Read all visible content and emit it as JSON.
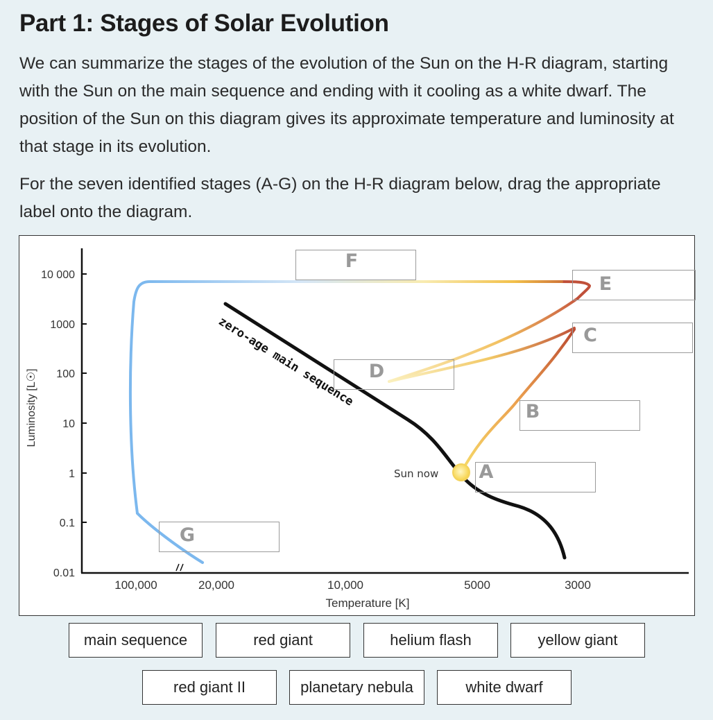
{
  "title": "Part 1: Stages of Solar Evolution",
  "paragraphs": {
    "intro": "We can summarize the stages of the evolution of the Sun on the H-R diagram, starting with the Sun on the main sequence and ending with it cooling as a white dwarf. The position of the Sun on this diagram gives its approximate temperature and luminosity at that stage in its evolution.",
    "instruction": "For the seven identified stages (A-G) on the H-R diagram below, drag the appropriate label onto the diagram."
  },
  "diagram": {
    "y_axis_label": "Luminosity [L☉]",
    "y_ticks": [
      "10 000",
      "1000",
      "100",
      "10",
      "1",
      "0.1",
      "0.01"
    ],
    "x_axis_label": "Temperature [K]",
    "x_ticks": [
      "100,000",
      "20,000",
      "10,000",
      "5000",
      "3000"
    ],
    "curve_label": "zero-age main sequence",
    "sun_label": "Sun now",
    "stage_letters": [
      "A",
      "B",
      "C",
      "D",
      "E",
      "F",
      "G"
    ],
    "colors": {
      "blue_track": "#7cb8ee",
      "yellow_track": "#f7dc6a",
      "red_track": "#b8452e",
      "sun": "#fbd748"
    }
  },
  "labels": {
    "row1": [
      "main sequence",
      "red giant",
      "helium flash",
      "yellow giant"
    ],
    "row2": [
      "red giant II",
      "planetary nebula",
      "white dwarf"
    ]
  }
}
